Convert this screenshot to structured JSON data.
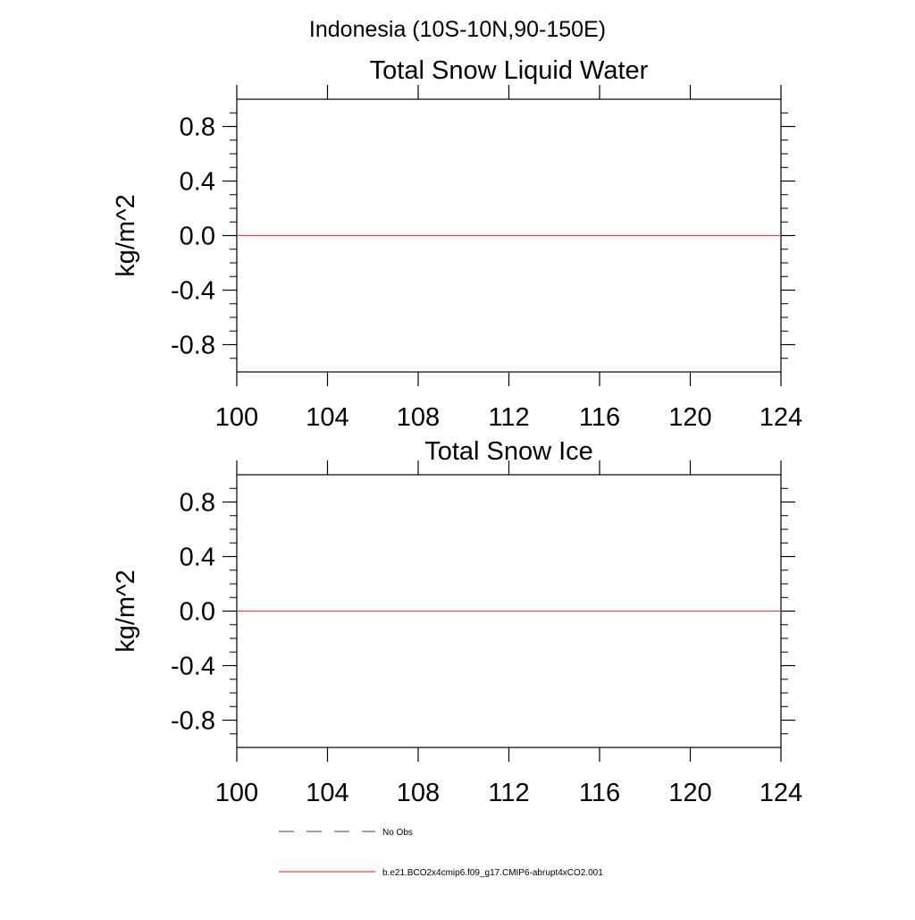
{
  "figure": {
    "title": "Indonesia (10S-10N,90-150E)",
    "colors": {
      "axis": "#000000",
      "model_line": "#e8484b",
      "obs_line": "#5a6b9a"
    }
  },
  "chart_data": [
    {
      "type": "line",
      "title": "Total Snow Liquid Water",
      "xlabel": "",
      "ylabel": "kg/m^2",
      "xlim": [
        100,
        124
      ],
      "ylim": [
        -1,
        1
      ],
      "x_ticks": [
        100,
        104,
        108,
        112,
        116,
        120,
        124
      ],
      "y_ticks": [
        -0.8,
        -0.4,
        0.0,
        0.4,
        0.8
      ],
      "x_tick_labels": [
        "100",
        "104",
        "108",
        "112",
        "116",
        "120",
        "124"
      ],
      "y_tick_labels": [
        "-0.8",
        "-0.4",
        "0.0",
        "0.4",
        "0.8"
      ],
      "grid": false,
      "series": [
        {
          "name": "b.e21.BCO2x4cmip6.f09_g17.CMIP6-abrupt4xCO2.001",
          "x": [
            100,
            124
          ],
          "values": [
            0,
            0
          ],
          "color": "#e8484b",
          "dash": "solid"
        }
      ]
    },
    {
      "type": "line",
      "title": "Total Snow Ice",
      "xlabel": "",
      "ylabel": "kg/m^2",
      "xlim": [
        100,
        124
      ],
      "ylim": [
        -1,
        1
      ],
      "x_ticks": [
        100,
        104,
        108,
        112,
        116,
        120,
        124
      ],
      "y_ticks": [
        -0.8,
        -0.4,
        0.0,
        0.4,
        0.8
      ],
      "x_tick_labels": [
        "100",
        "104",
        "108",
        "112",
        "116",
        "120",
        "124"
      ],
      "y_tick_labels": [
        "-0.8",
        "-0.4",
        "0.0",
        "0.4",
        "0.8"
      ],
      "grid": false,
      "series": [
        {
          "name": "b.e21.BCO2x4cmip6.f09_g17.CMIP6-abrupt4xCO2.001",
          "x": [
            100,
            124
          ],
          "values": [
            0,
            0
          ],
          "color": "#e8484b",
          "dash": "solid"
        }
      ]
    }
  ],
  "legend": {
    "placement": "bottom",
    "items": [
      {
        "label": "No Obs",
        "color": "#5a6b9a",
        "dash": "dashed"
      },
      {
        "label": "b.e21.BCO2x4cmip6.f09_g17.CMIP6-abrupt4xCO2.001",
        "color": "#e8484b",
        "dash": "solid"
      }
    ]
  }
}
